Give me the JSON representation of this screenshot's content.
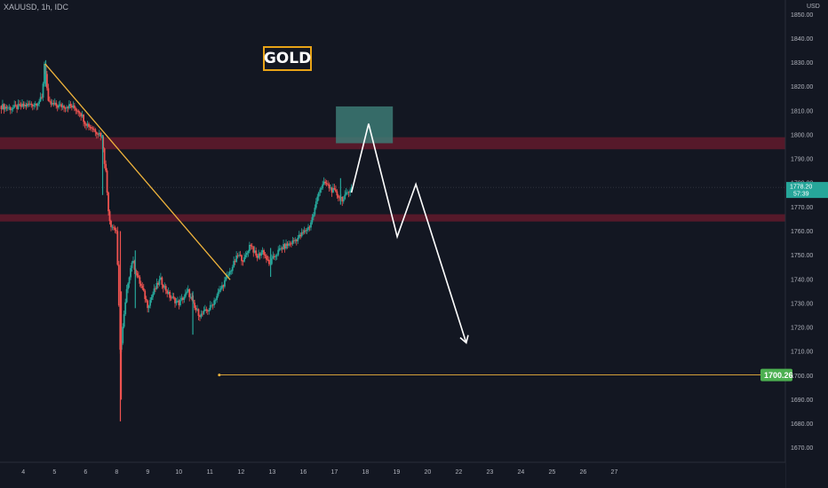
{
  "header": {
    "symbol": "XAUUSD, 1h, IDC"
  },
  "title_label": "GOLD",
  "colors": {
    "background": "#131722",
    "bull": "#26a69a",
    "bear": "#ef5350",
    "zone": "#6d1b2e",
    "target_zone": "#3d7a74",
    "trendline": "#f0b43c",
    "projection": "#ffffff",
    "target_badge": "#4caf50",
    "price_badge": "#26a69a"
  },
  "chart_data": {
    "type": "candlestick",
    "ylim": [
      1664,
      1856
    ],
    "y_ticks": [
      1850,
      1840,
      1830,
      1820,
      1810,
      1800,
      1790,
      1780,
      1770,
      1760,
      1750,
      1740,
      1730,
      1720,
      1710,
      1700,
      1690,
      1680,
      1670
    ],
    "y_tick_labels": [
      "1850.00",
      "1840.00",
      "1830.00",
      "1820.00",
      "1810.00",
      "1800.00",
      "1790.00",
      "1780.00",
      "1770.00",
      "1760.00",
      "1750.00",
      "1740.00",
      "1730.00",
      "1720.00",
      "1710.00",
      "1700.00",
      "1690.00",
      "1680.00",
      "1670.00"
    ],
    "y_unit": "USD",
    "xlim": [
      3.25,
      28.5
    ],
    "x_ticks": [
      4,
      5,
      6,
      8,
      9,
      10,
      11,
      12,
      13,
      16,
      17,
      18,
      19,
      20,
      22,
      23,
      24,
      25,
      26,
      27
    ],
    "x_tick_labels": [
      "4",
      "5",
      "6",
      "8",
      "9",
      "10",
      "11",
      "12",
      "13",
      "16",
      "17",
      "18",
      "19",
      "20",
      "22",
      "23",
      "24",
      "25",
      "26",
      "27"
    ],
    "x_tick_positions": [
      4,
      5,
      6,
      7,
      8,
      9,
      10,
      11,
      12,
      13,
      14,
      15,
      16,
      17,
      18,
      19,
      20,
      21,
      22,
      23
    ],
    "price_path": [
      [
        3.25,
        1812
      ],
      [
        3.6,
        1811
      ],
      [
        4.0,
        1812
      ],
      [
        4.4,
        1813
      ],
      [
        4.6,
        1815
      ],
      [
        4.68,
        1830
      ],
      [
        4.72,
        1826
      ],
      [
        4.8,
        1813
      ],
      [
        5.1,
        1812
      ],
      [
        5.5,
        1812
      ],
      [
        5.8,
        1810
      ],
      [
        6.0,
        1805
      ],
      [
        6.3,
        1802
      ],
      [
        6.5,
        1800
      ],
      [
        6.55,
        1798
      ],
      [
        6.6,
        1790
      ],
      [
        6.65,
        1785
      ],
      [
        6.7,
        1775
      ],
      [
        6.75,
        1767
      ],
      [
        6.8,
        1763
      ],
      [
        7.0,
        1760
      ],
      [
        7.05,
        1735
      ],
      [
        7.1,
        1720
      ],
      [
        7.12,
        1708
      ],
      [
        7.2,
        1720
      ],
      [
        7.35,
        1738
      ],
      [
        7.5,
        1748
      ],
      [
        7.7,
        1740
      ],
      [
        7.85,
        1735
      ],
      [
        8.0,
        1729
      ],
      [
        8.2,
        1735
      ],
      [
        8.4,
        1740
      ],
      [
        8.7,
        1733
      ],
      [
        9.0,
        1730
      ],
      [
        9.3,
        1735
      ],
      [
        9.5,
        1728
      ],
      [
        9.7,
        1725
      ],
      [
        10.0,
        1728
      ],
      [
        10.3,
        1735
      ],
      [
        10.6,
        1742
      ],
      [
        10.9,
        1750
      ],
      [
        11.1,
        1748
      ],
      [
        11.3,
        1755
      ],
      [
        11.5,
        1749
      ],
      [
        11.7,
        1752
      ],
      [
        11.9,
        1746
      ],
      [
        12.1,
        1750
      ],
      [
        12.3,
        1753
      ],
      [
        12.6,
        1755
      ],
      [
        12.9,
        1758
      ],
      [
        13.2,
        1762
      ],
      [
        13.35,
        1768
      ],
      [
        13.5,
        1777
      ],
      [
        13.7,
        1780
      ],
      [
        13.85,
        1778
      ],
      [
        14.1,
        1775
      ],
      [
        14.3,
        1773
      ],
      [
        14.45,
        1777
      ],
      [
        14.55,
        1778
      ]
    ],
    "spikes": [
      [
        4.72,
        1820,
        1831
      ],
      [
        6.55,
        1775,
        1800
      ],
      [
        7.12,
        1681,
        1760
      ],
      [
        7.15,
        1690,
        1735
      ],
      [
        7.6,
        1728,
        1752
      ],
      [
        9.45,
        1717,
        1735
      ],
      [
        11.95,
        1741,
        1753
      ],
      [
        14.2,
        1771,
        1782
      ]
    ],
    "current_price": "1778.20",
    "countdown": "57:39",
    "current_value": 1778.2,
    "zones": [
      {
        "kind": "resistance",
        "x_from": 3.25,
        "x_to": 28.5,
        "y_from": 1794,
        "y_to": 1799
      },
      {
        "kind": "resistance",
        "x_from": 3.25,
        "x_to": 28.5,
        "y_from": 1764,
        "y_to": 1767
      },
      {
        "kind": "target",
        "x_from": 14.05,
        "x_to": 15.88,
        "y_from": 1796.5,
        "y_to": 1811.8
      }
    ],
    "trendline": {
      "from": [
        4.7,
        1829.5
      ],
      "to": [
        10.65,
        1739.8
      ]
    },
    "projection_path": [
      [
        14.55,
        1776
      ],
      [
        15.1,
        1804.6
      ],
      [
        16.02,
        1757.7
      ],
      [
        16.62,
        1779.5
      ],
      [
        18.24,
        1713.6
      ]
    ],
    "target_line": {
      "y": 1700.26,
      "x_from": 10.3,
      "label": "1700.26"
    }
  }
}
